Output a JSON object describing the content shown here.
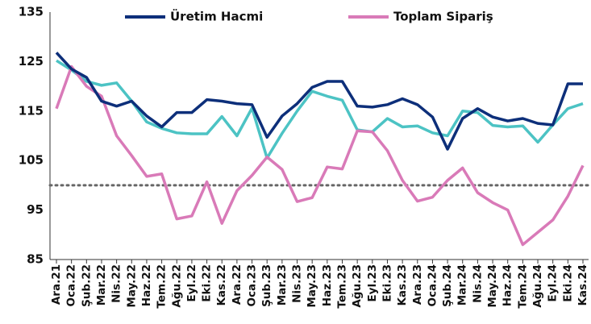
{
  "chart_data": {
    "type": "line",
    "categories": [
      "Ara.21",
      "Oca.22",
      "Şub.22",
      "Mar.22",
      "Nis.22",
      "May.22",
      "Haz.22",
      "Tem.22",
      "Ağu.22",
      "Eyl.22",
      "Eki.22",
      "Kas.22",
      "Ara.22",
      "Oca.23",
      "Şub.23",
      "Mar.23",
      "Nis.23",
      "May.23",
      "Haz.23",
      "Tem.23",
      "Ağu.23",
      "Eyl.23",
      "Eki.23",
      "Kas.23",
      "Ara.23",
      "Oca.24",
      "Şub.24",
      "Mar.24",
      "Nis.24",
      "May.24",
      "Haz.24",
      "Tem.24",
      "Ağu.24",
      "Eyl.24",
      "Eki.24",
      "Kas.24"
    ],
    "series": [
      {
        "name": "Üretim Hacmi",
        "color": "#0d2f7a",
        "values": [
          126.8,
          123.5,
          121.8,
          117,
          116,
          117,
          114,
          111.8,
          114.7,
          114.7,
          117.3,
          117,
          116.5,
          116.3,
          109.7,
          114,
          116.5,
          119.8,
          121,
          121,
          116,
          115.8,
          116.3,
          117.5,
          116.3,
          113.8,
          107.3,
          113.5,
          115.5,
          113.8,
          113,
          113.5,
          112.5,
          112.2,
          120.5,
          120.5
        ]
      },
      {
        "name": "Toplam Sipariş",
        "color": "#d97ab8",
        "values": [
          115.5,
          124,
          120,
          118,
          110,
          106,
          101.8,
          102.3,
          93.2,
          93.8,
          100.7,
          92.3,
          98.9,
          102,
          105.7,
          103.2,
          96.7,
          97.5,
          103.7,
          103.3,
          111,
          110.8,
          107,
          101,
          96.8,
          97.6,
          101,
          103.5,
          98.5,
          96.5,
          95,
          88,
          90.5,
          93,
          97.8,
          104
        ]
      },
      {
        "color": "#4cc3c4",
        "values": [
          125.2,
          123.3,
          121,
          120.2,
          120.7,
          117,
          112.8,
          111.5,
          110.6,
          110.4,
          110.4,
          113.9,
          110,
          115.6,
          105.5,
          110.5,
          115,
          119,
          118,
          117.2,
          111.2,
          110.8,
          113.5,
          111.8,
          112,
          110.6,
          110,
          115,
          114.7,
          112.1,
          111.8,
          112,
          108.7,
          112.2,
          115.5,
          116.5
        ]
      }
    ],
    "hline": {
      "value": 100,
      "color": "#666666"
    },
    "ylim": [
      85,
      135
    ],
    "yticks": [
      85,
      95,
      105,
      115,
      125,
      135
    ],
    "legend": "top"
  }
}
